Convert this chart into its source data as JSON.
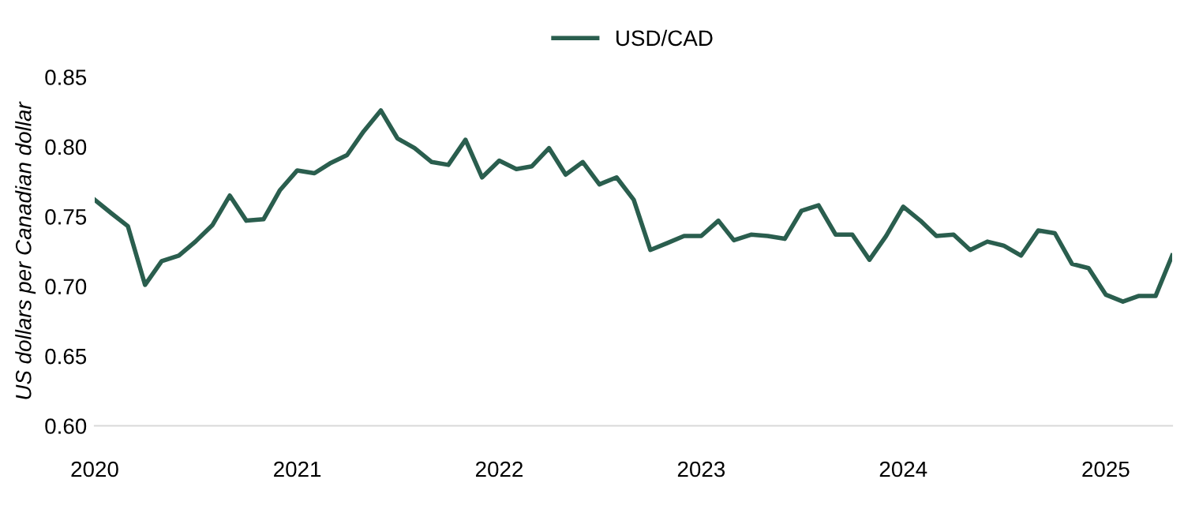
{
  "chart_data": {
    "type": "line",
    "ylabel": "US dollars per Canadian dollar",
    "x": [
      "2020-01",
      "2020-02",
      "2020-03",
      "2020-04",
      "2020-05",
      "2020-06",
      "2020-07",
      "2020-08",
      "2020-09",
      "2020-10",
      "2020-11",
      "2020-12",
      "2021-01",
      "2021-02",
      "2021-03",
      "2021-04",
      "2021-05",
      "2021-06",
      "2021-07",
      "2021-08",
      "2021-09",
      "2021-10",
      "2021-11",
      "2021-12",
      "2022-01",
      "2022-02",
      "2022-03",
      "2022-04",
      "2022-05",
      "2022-06",
      "2022-07",
      "2022-08",
      "2022-09",
      "2022-10",
      "2022-11",
      "2022-12",
      "2023-01",
      "2023-02",
      "2023-03",
      "2023-04",
      "2023-05",
      "2023-06",
      "2023-07",
      "2023-08",
      "2023-09",
      "2023-10",
      "2023-11",
      "2023-12",
      "2024-01",
      "2024-02",
      "2024-03",
      "2024-04",
      "2024-05",
      "2024-06",
      "2024-07",
      "2024-08",
      "2024-09",
      "2024-10",
      "2024-11",
      "2024-12",
      "2025-01",
      "2025-02",
      "2025-03",
      "2025-04",
      "2025-05"
    ],
    "series": [
      {
        "name": "USD/CAD",
        "color": "#2a5e4e",
        "values": [
          0.762,
          0.752,
          0.743,
          0.701,
          0.718,
          0.722,
          0.732,
          0.744,
          0.765,
          0.747,
          0.748,
          0.769,
          0.783,
          0.781,
          0.788,
          0.794,
          0.811,
          0.826,
          0.806,
          0.799,
          0.789,
          0.787,
          0.805,
          0.778,
          0.79,
          0.784,
          0.786,
          0.799,
          0.78,
          0.789,
          0.773,
          0.778,
          0.762,
          0.726,
          0.731,
          0.736,
          0.736,
          0.747,
          0.733,
          0.737,
          0.736,
          0.734,
          0.754,
          0.758,
          0.737,
          0.737,
          0.719,
          0.736,
          0.757,
          0.747,
          0.736,
          0.737,
          0.726,
          0.732,
          0.729,
          0.722,
          0.74,
          0.738,
          0.716,
          0.713,
          0.694,
          0.689,
          0.693,
          0.693,
          0.722
        ]
      }
    ],
    "xticks": [
      {
        "value": "2020-01",
        "label": "2020"
      },
      {
        "value": "2021-01",
        "label": "2021"
      },
      {
        "value": "2022-01",
        "label": "2022"
      },
      {
        "value": "2023-01",
        "label": "2023"
      },
      {
        "value": "2024-01",
        "label": "2024"
      },
      {
        "value": "2025-01",
        "label": "2025"
      }
    ],
    "xlim": [
      "2020-01",
      "2025-05"
    ],
    "ylim": [
      0.6,
      0.85
    ],
    "yticks": [
      {
        "value": 0.6,
        "label": "0.60"
      },
      {
        "value": 0.65,
        "label": "0.65"
      },
      {
        "value": 0.7,
        "label": "0.70"
      },
      {
        "value": 0.75,
        "label": "0.75"
      },
      {
        "value": 0.8,
        "label": "0.80"
      },
      {
        "value": 0.85,
        "label": "0.85"
      }
    ],
    "legend": "top",
    "grid": false,
    "line_style": "solid",
    "marker": "none"
  }
}
